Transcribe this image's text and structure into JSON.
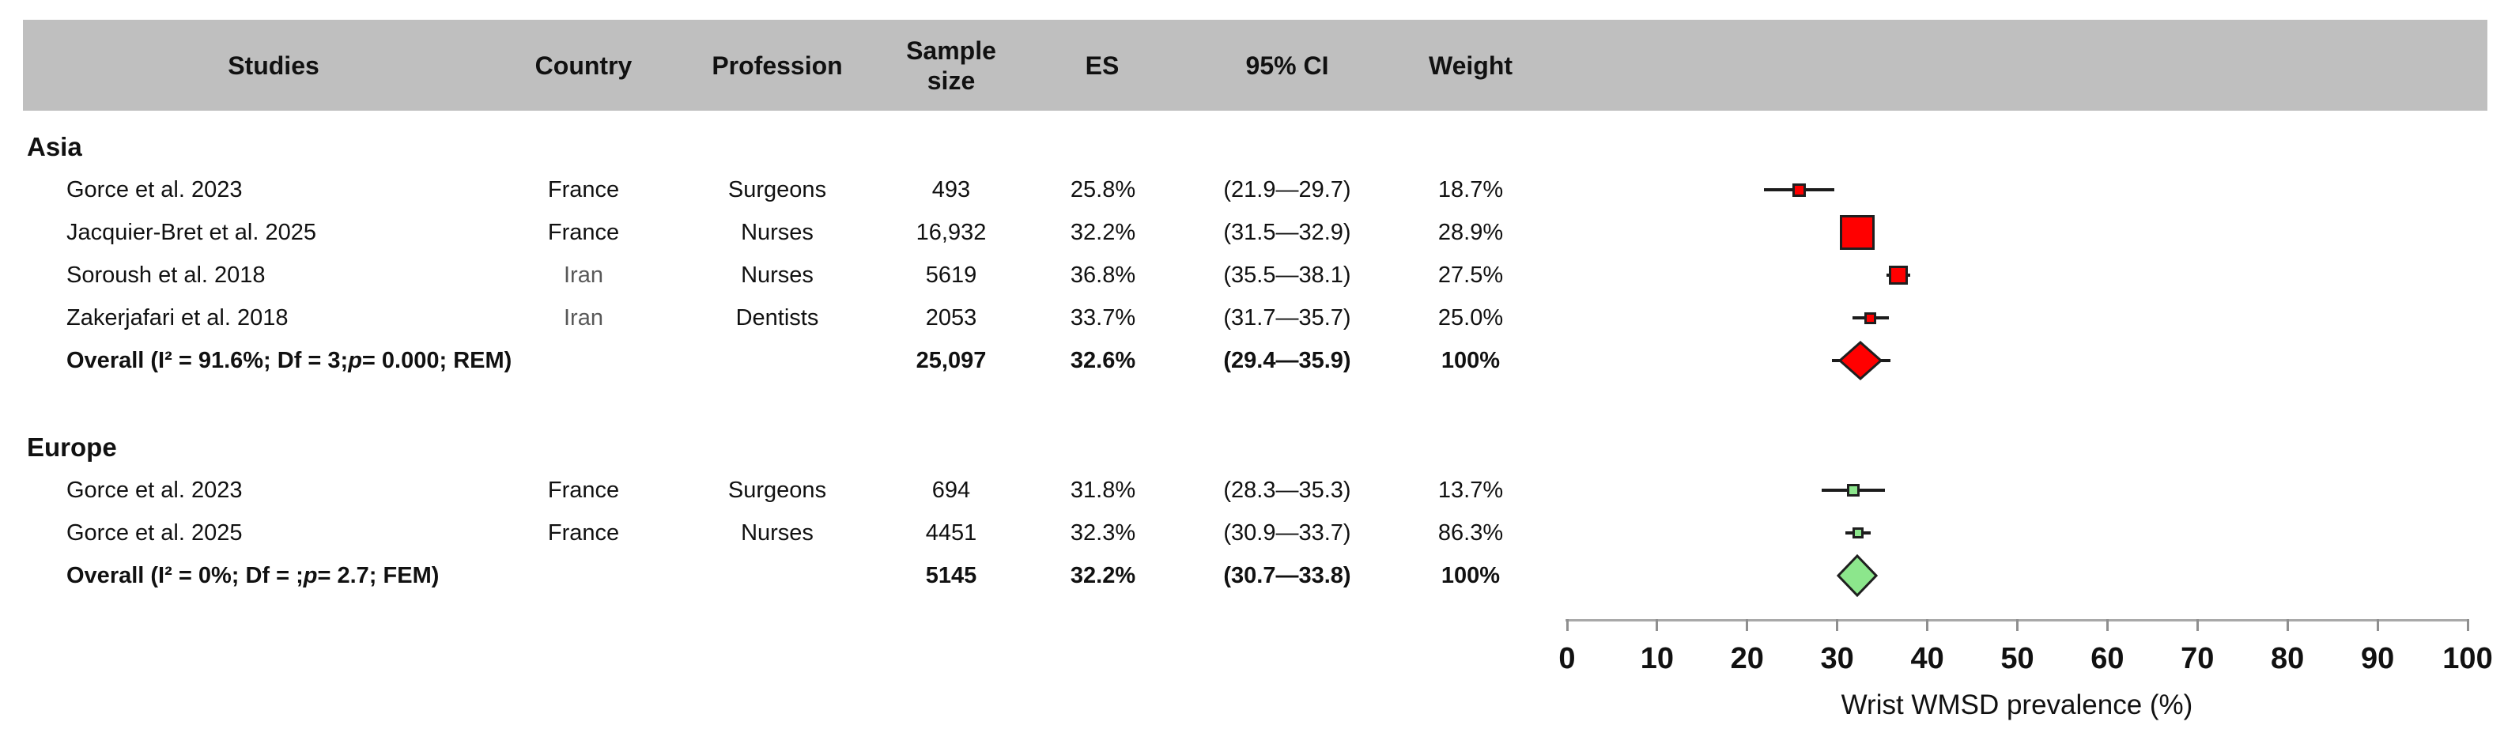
{
  "colors": {
    "header_bg": "#bfbfbf",
    "asia_marker": "#ff0000",
    "europe_marker": "#8ce68c",
    "marker_border": "#1f1f1f",
    "ci_line": "#1c1c1c",
    "axis_line": "#a8a8a8",
    "text": "#111111",
    "muted_country": "#595959"
  },
  "table": {
    "columns": [
      "Studies",
      "Country",
      "Profession",
      "Sample size",
      "ES",
      "95% CI",
      "Weight"
    ]
  },
  "chart_data": {
    "type": "scatter",
    "subtype": "forest-plot",
    "title": "",
    "xlabel": "Wrist WMSD prevalence (%)",
    "ylabel": "",
    "xlim": [
      0,
      100
    ],
    "xticks": [
      0,
      10,
      20,
      30,
      40,
      50,
      60,
      70,
      80,
      90,
      100
    ],
    "grid": false,
    "legend": "none",
    "groups": [
      {
        "name": "Asia",
        "marker_color": "#ff0000",
        "studies": [
          {
            "study": "Gorce et al. 2023",
            "country": "France",
            "profession": "Surgeons",
            "sample_size": "493",
            "es": 25.8,
            "es_label": "25.8%",
            "ci_low": 21.9,
            "ci_high": 29.7,
            "ci_label": "(21.9—29.7)",
            "weight": 18.7,
            "weight_label": "18.7%",
            "marker_px": 17
          },
          {
            "study": "Jacquier-Bret et al. 2025",
            "country": "France",
            "profession": "Nurses",
            "sample_size": "16,932",
            "es": 32.2,
            "es_label": "32.2%",
            "ci_low": 31.5,
            "ci_high": 32.9,
            "ci_label": "(31.5—32.9)",
            "weight": 28.9,
            "weight_label": "28.9%",
            "marker_px": 44
          },
          {
            "study": "Soroush et al. 2018",
            "country": "Iran",
            "country_color": "#595959",
            "profession": "Nurses",
            "sample_size": "5619",
            "es": 36.8,
            "es_label": "36.8%",
            "ci_low": 35.5,
            "ci_high": 38.1,
            "ci_label": "(35.5—38.1)",
            "weight": 27.5,
            "weight_label": "27.5%",
            "marker_px": 24
          },
          {
            "study": "Zakerjafari et al. 2018",
            "country": "Iran",
            "country_color": "#595959",
            "profession": "Dentists",
            "sample_size": "2053",
            "es": 33.7,
            "es_label": "33.7%",
            "ci_low": 31.7,
            "ci_high": 35.7,
            "ci_label": "(31.7—35.7)",
            "weight": 25.0,
            "weight_label": "25.0%",
            "marker_px": 15
          }
        ],
        "overall": {
          "label": "Overall (I² = 91.6%; Df = 3; p = 0.000; REM)",
          "sample_size": "25,097",
          "es": 32.6,
          "es_label": "32.6%",
          "ci_low": 29.4,
          "ci_high": 35.9,
          "ci_label": "(29.4—35.9)",
          "weight_label": "100%",
          "diamond_w": 56,
          "diamond_h": 50
        }
      },
      {
        "name": "Europe",
        "marker_color": "#8ce68c",
        "studies": [
          {
            "study": "Gorce et al. 2023",
            "country": "France",
            "profession": "Surgeons",
            "sample_size": "694",
            "es": 31.8,
            "es_label": "31.8%",
            "ci_low": 28.3,
            "ci_high": 35.3,
            "ci_label": "(28.3—35.3)",
            "weight": 13.7,
            "weight_label": "13.7%",
            "marker_px": 16
          },
          {
            "study": "Gorce et al. 2025",
            "country": "France",
            "profession": "Nurses",
            "sample_size": "4451",
            "es": 32.3,
            "es_label": "32.3%",
            "ci_low": 30.9,
            "ci_high": 33.7,
            "ci_label": "(30.9—33.7)",
            "weight": 86.3,
            "weight_label": "86.3%",
            "marker_px": 14
          }
        ],
        "overall": {
          "label": "Overall (I² = 0%; Df = ; p = 2.7; FEM)",
          "sample_size": "5145",
          "es": 32.2,
          "es_label": "32.2%",
          "ci_low": 30.7,
          "ci_high": 33.8,
          "ci_label": "(30.7—33.8)",
          "weight_label": "100%",
          "diamond_w": 52,
          "diamond_h": 54
        }
      }
    ]
  }
}
